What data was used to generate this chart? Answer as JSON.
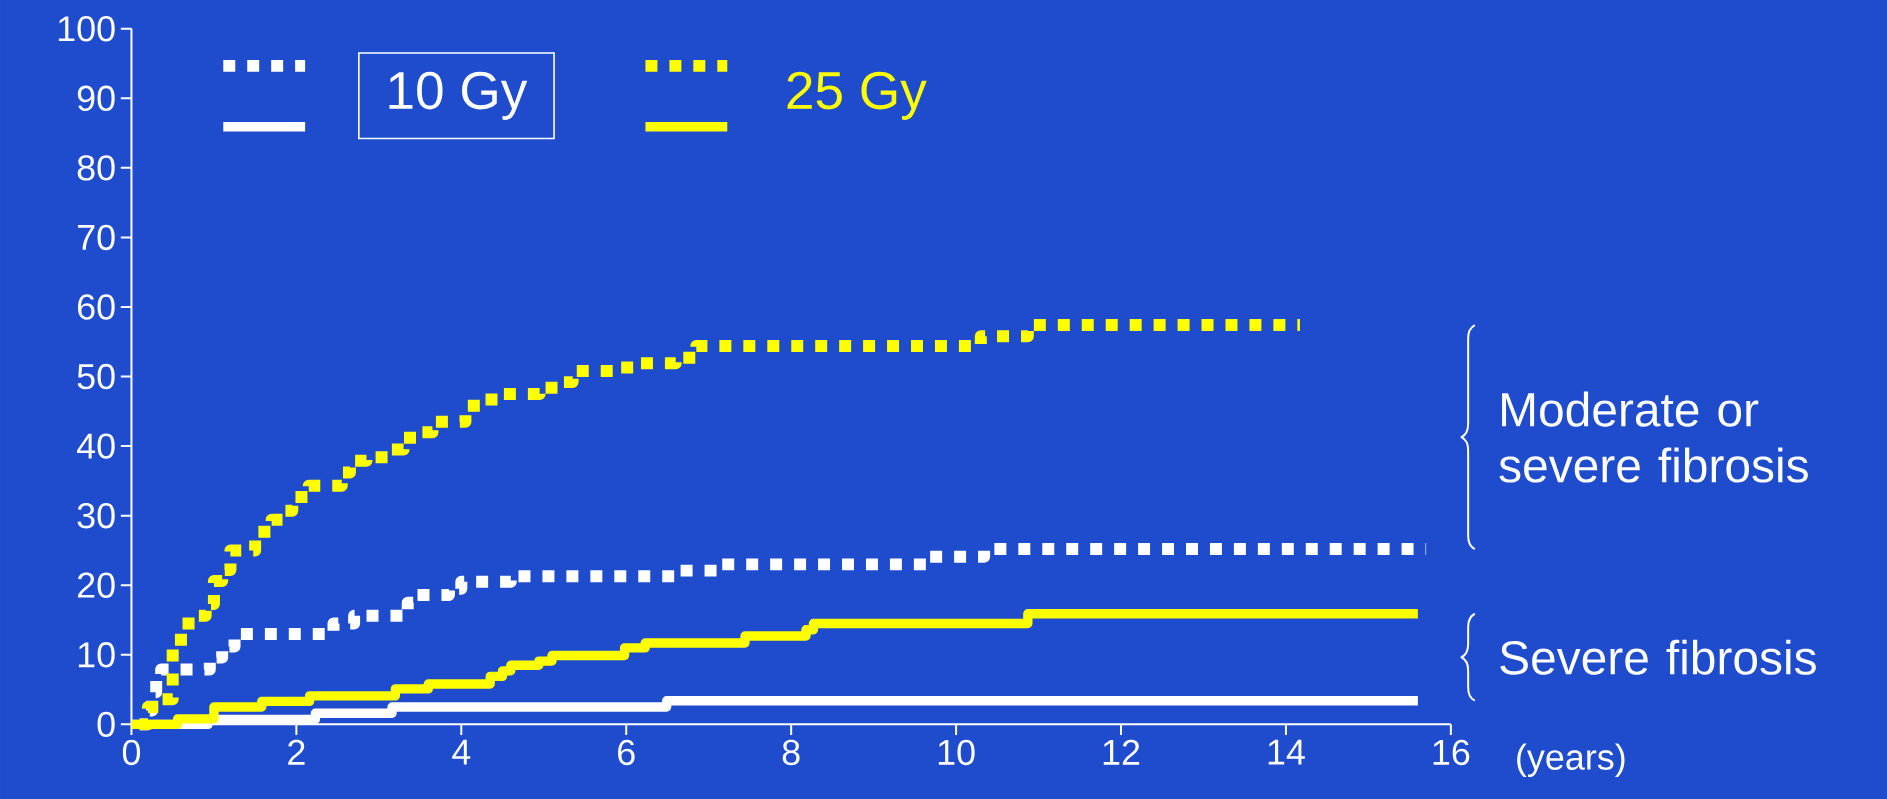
{
  "chart_data": {
    "type": "step",
    "xlabel": "(years)",
    "xlim": [
      0,
      16
    ],
    "ylim": [
      0,
      100
    ],
    "xticks": [
      0,
      2,
      4,
      6,
      8,
      10,
      12,
      14,
      16
    ],
    "yticks": [
      0,
      10,
      20,
      30,
      40,
      50,
      60,
      70,
      80,
      90,
      100
    ],
    "grid": false,
    "legend": "top left",
    "marker": "none",
    "annotations": [
      "Moderate or severe fibrosis",
      "Severe fibrosis"
    ],
    "series": [
      {
        "name": "10 Gy",
        "color": "#ffffff",
        "line_style": "dotted",
        "x": [
          0.1,
          0.2,
          0.25,
          0.3,
          0.36,
          0.95,
          1.1,
          1.25,
          2.45,
          2.7,
          3.35,
          3.45,
          3.85,
          4.0,
          4.6,
          6.64,
          7.1,
          9.66,
          10.34,
          15.7
        ],
        "values": [
          0,
          2,
          4.6,
          6.8,
          7.9,
          9.6,
          11.2,
          13,
          14.5,
          15.6,
          17.5,
          18.6,
          19.5,
          20.5,
          21.3,
          22.1,
          23,
          24.1,
          25.2,
          25.2
        ]
      },
      {
        "color": "#ffffff",
        "line_style": "solid",
        "x": [
          0,
          0.93,
          2.23,
          3.16,
          6.49,
          15.6
        ],
        "values": [
          0,
          0.7,
          1.6,
          2.5,
          3.4,
          3.4
        ]
      },
      {
        "name": "25 Gy",
        "color": "#ffff00",
        "line_style": "dotted",
        "x": [
          0.1,
          0.2,
          0.35,
          0.5,
          0.6,
          0.8,
          0.9,
          1.0,
          1.1,
          1.2,
          1.5,
          1.7,
          1.85,
          1.95,
          2.15,
          2.55,
          2.65,
          2.85,
          3.15,
          3.3,
          3.5,
          3.65,
          4.05,
          4.25,
          4.45,
          4.95,
          5.2,
          5.35,
          5.9,
          6.15,
          6.6,
          6.85,
          10.3,
          10.87,
          14.17
        ],
        "values": [
          0,
          2.5,
          3.6,
          11,
          14.5,
          15.6,
          17.3,
          20.6,
          22.2,
          25,
          27.7,
          29.4,
          30.7,
          32.7,
          34.3,
          36.2,
          37.9,
          38.4,
          39.5,
          41.2,
          42,
          43.5,
          45.8,
          46.7,
          47.5,
          48.4,
          49.2,
          50.8,
          51.3,
          51.9,
          52.7,
          54.4,
          55.8,
          57.4,
          57.4
        ]
      },
      {
        "color": "#ffff00",
        "line_style": "solid",
        "x": [
          0,
          0.56,
          1.0,
          1.58,
          2.16,
          3.2,
          3.6,
          4.35,
          4.5,
          4.6,
          4.94,
          5.1,
          5.98,
          6.23,
          7.44,
          8.18,
          8.27,
          10.87,
          15.6
        ],
        "values": [
          0,
          0.8,
          2.5,
          3.3,
          4.1,
          5.1,
          5.8,
          6.9,
          7.7,
          8.5,
          9.1,
          9.9,
          11,
          11.7,
          12.7,
          13.6,
          14.5,
          15.9,
          15.9
        ]
      }
    ]
  }
}
